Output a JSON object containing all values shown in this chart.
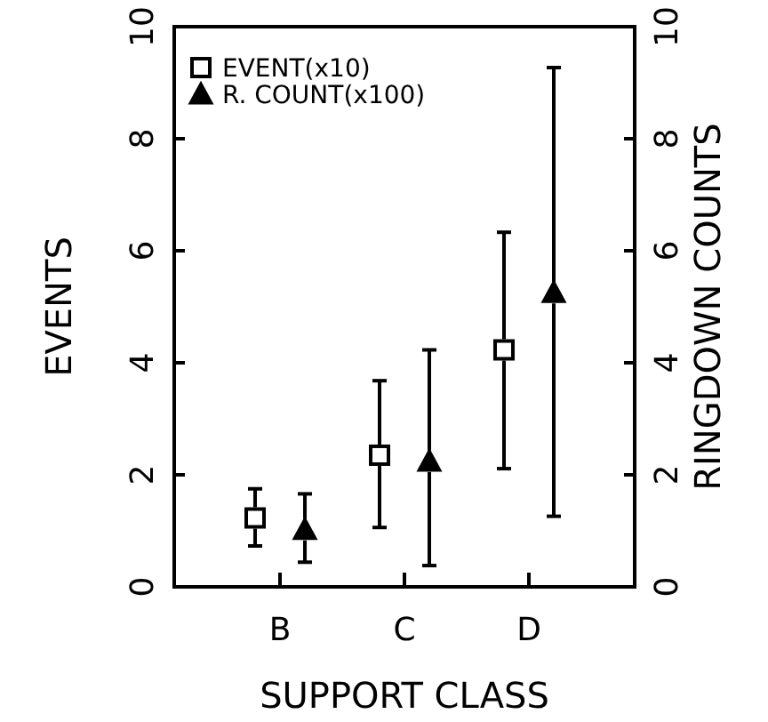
{
  "chart_data": {
    "type": "scatter",
    "xlabel": "SUPPORT CLASS",
    "ylabel": "EVENTS",
    "y2label": "RINGDOWN COUNTS",
    "categories": [
      "B",
      "C",
      "D"
    ],
    "series": [
      {
        "name": "EVENT(x10)",
        "color": "#000000",
        "marker": "square",
        "values": [
          1.23,
          2.35,
          4.23
        ],
        "errors": [
          [
            0.73,
            1.75
          ],
          [
            1.06,
            3.68
          ],
          [
            2.11,
            6.33
          ]
        ]
      },
      {
        "name": "R. COUNT(x100)",
        "color": "#000000",
        "marker": "triangle",
        "axis": "y2",
        "values": [
          1.02,
          2.24,
          5.25
        ],
        "errors": [
          [
            0.44,
            1.66
          ],
          [
            0.38,
            4.23
          ],
          [
            1.26,
            9.27
          ]
        ]
      }
    ],
    "ylim": [
      0,
      10
    ],
    "yticks": [
      0,
      2,
      4,
      6,
      8,
      10
    ],
    "y2lim": [
      0,
      10
    ],
    "y2ticks": [
      0,
      2,
      4,
      6,
      8,
      10
    ],
    "legend": "top left",
    "grid": false
  }
}
